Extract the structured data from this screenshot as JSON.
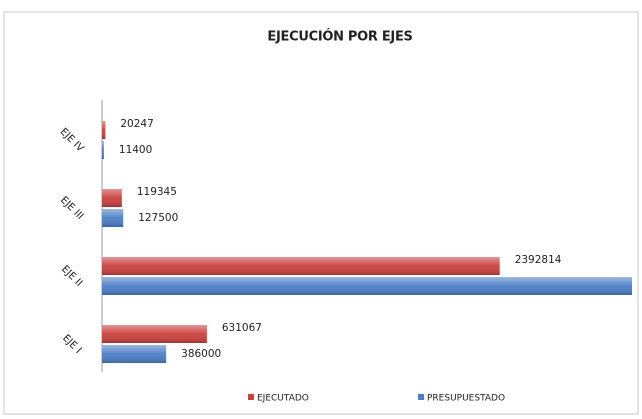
{
  "chart_data": {
    "type": "hbar",
    "title": "EJECUCIÓN POR EJES",
    "categories": [
      "EJE I",
      "EJE II",
      "EJE III",
      "EJE IV"
    ],
    "series": [
      {
        "name": "EJECUTADO",
        "color": "#c9403d",
        "values": [
          631067,
          2392814,
          119345,
          20247
        ]
      },
      {
        "name": "PRESUPUESTADO",
        "color": "#4b7ec6",
        "values": [
          386000,
          3188900,
          127500,
          11400
        ]
      }
    ],
    "legend": "bottom"
  }
}
